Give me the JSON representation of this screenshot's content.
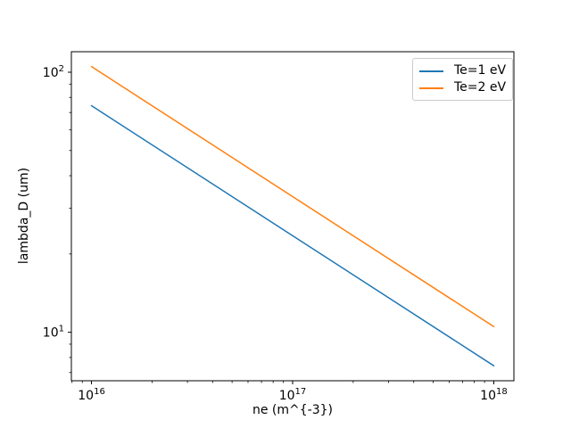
{
  "chart_data": {
    "type": "line",
    "title": "",
    "xlabel": "ne (m^{-3})",
    "ylabel": "lambda_D (um)",
    "xscale": "log",
    "yscale": "log",
    "xlim": [
      7943000000000000.0,
      1.259e+18
    ],
    "ylim": [
      6.51,
      119.9
    ],
    "grid": false,
    "background": "#ffffff",
    "axis_color": "#000000",
    "x": [
      1e+16,
      1e+17,
      1e+18
    ],
    "series": [
      {
        "name": "Te=1 eV",
        "color": "#1f77b4",
        "values": [
          74.34,
          23.51,
          7.434
        ]
      },
      {
        "name": "Te=2 eV",
        "color": "#ff7f0e",
        "values": [
          105.12,
          33.24,
          10.512
        ]
      }
    ],
    "x_ticks": [
      {
        "value": 1e+16,
        "label": "10^16"
      },
      {
        "value": 1e+17,
        "label": "10^17"
      },
      {
        "value": 1e+18,
        "label": "10^18"
      }
    ],
    "y_ticks": [
      {
        "value": 10,
        "label": "10^1"
      },
      {
        "value": 100,
        "label": "10^2"
      }
    ],
    "legend": {
      "position": "upper right",
      "entries": [
        {
          "label": "Te=1 eV",
          "color": "#1f77b4"
        },
        {
          "label": "Te=2 eV",
          "color": "#ff7f0e"
        }
      ]
    }
  }
}
